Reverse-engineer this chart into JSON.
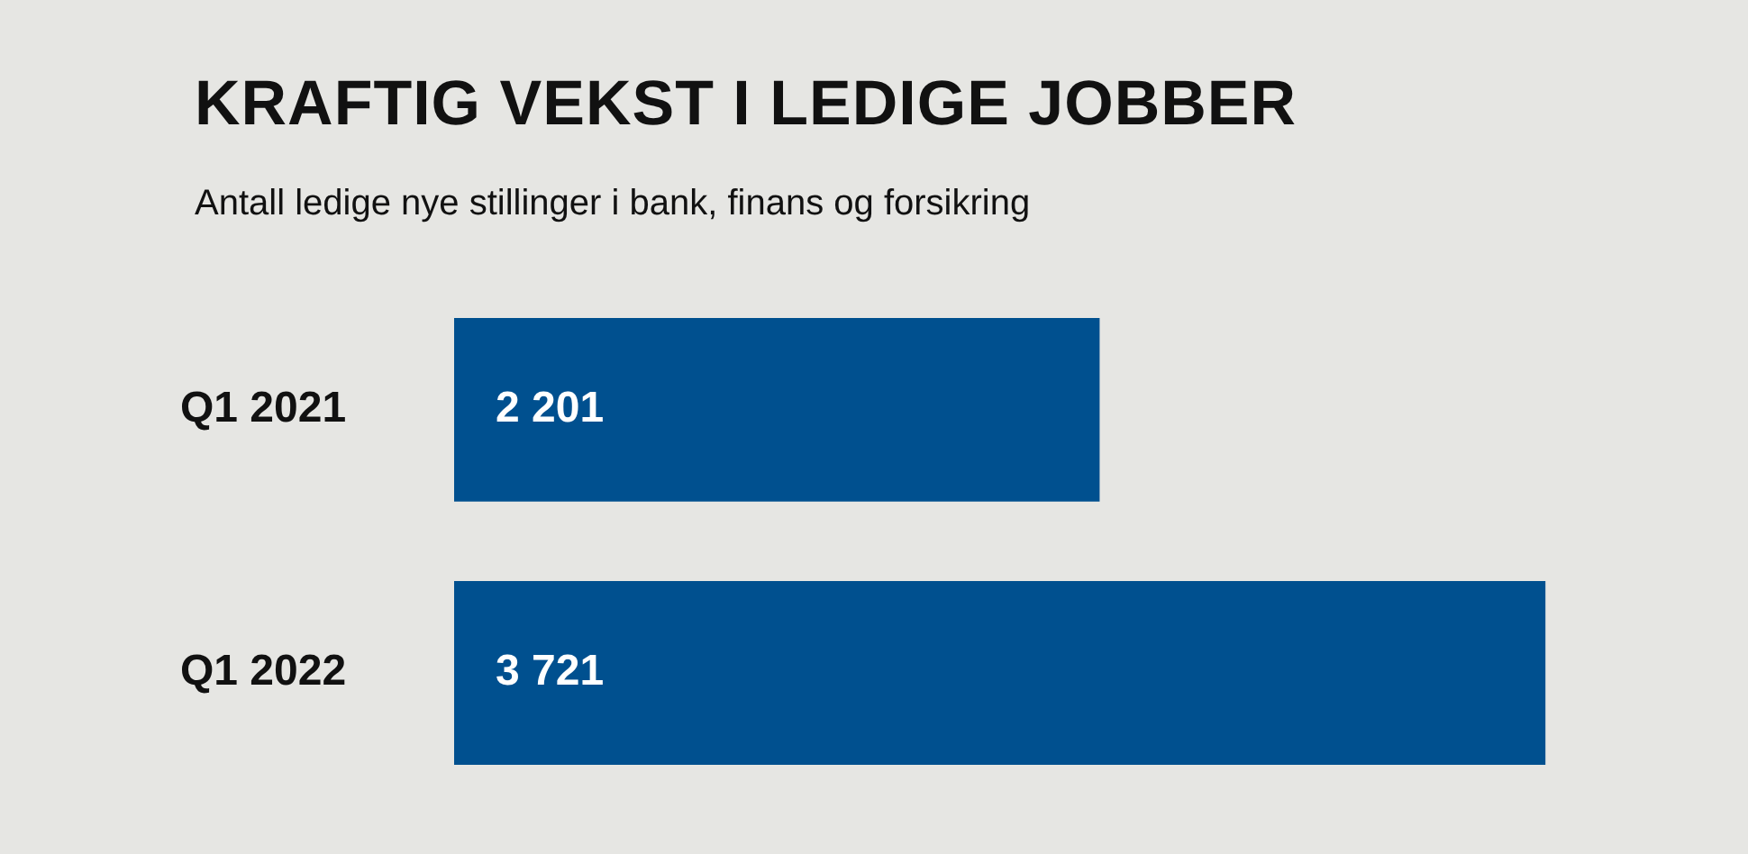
{
  "chart_data": {
    "type": "bar",
    "orientation": "horizontal",
    "title": "KRAFTIG VEKST I LEDIGE JOBBER",
    "subtitle": "Antall ledige nye stillinger i bank, finans og forsikring",
    "categories": [
      "Q1 2021",
      "Q1 2022"
    ],
    "values": [
      2201,
      3721
    ],
    "value_labels": [
      "2 201",
      "3 721"
    ],
    "color": "#00508f",
    "grid": false,
    "legend": false,
    "tick_labels": "y"
  }
}
